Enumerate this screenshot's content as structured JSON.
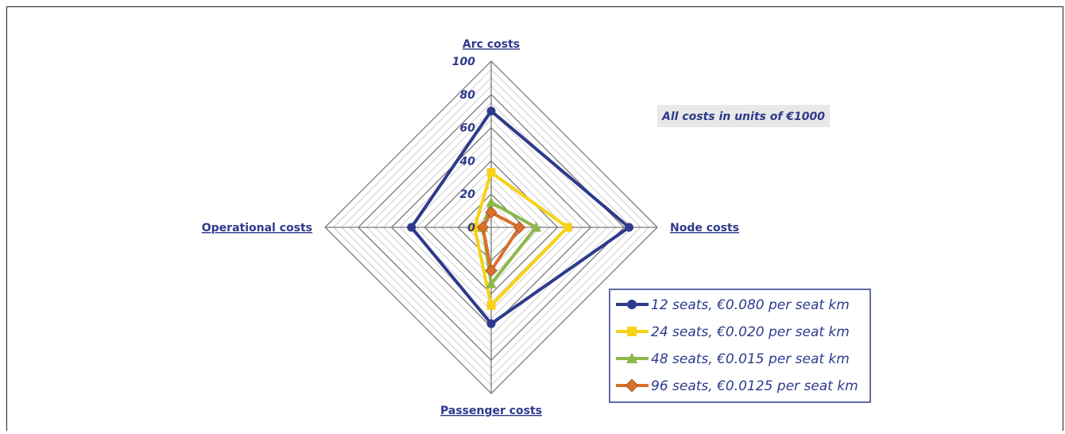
{
  "chart_data": {
    "type": "radar",
    "axes": [
      "Arc costs",
      "Node costs",
      "Passenger costs",
      "Operational costs"
    ],
    "axis_ticks": [
      "0",
      "20",
      "40",
      "60",
      "80",
      "100"
    ],
    "range": [
      0,
      100
    ],
    "annotation": "All costs in units of €1000",
    "series": [
      {
        "name": "12 seats, €0.080 per seat km",
        "values": [
          70,
          83,
          58,
          48
        ],
        "color": "#2e3a8c",
        "marker": "circle"
      },
      {
        "name": "24 seats, €0.020 per seat km",
        "values": [
          33,
          46,
          47,
          10
        ],
        "color": "#f7d117",
        "marker": "square"
      },
      {
        "name": "48 seats, €0.015 per seat km",
        "values": [
          15,
          27,
          34,
          5
        ],
        "color": "#8db84a",
        "marker": "triangle"
      },
      {
        "name": "96 seats, €0.0125 per seat km",
        "values": [
          9,
          17,
          26,
          5
        ],
        "color": "#d9702b",
        "marker": "diamond"
      }
    ],
    "legend_position": "bottom-right",
    "grid": true
  }
}
